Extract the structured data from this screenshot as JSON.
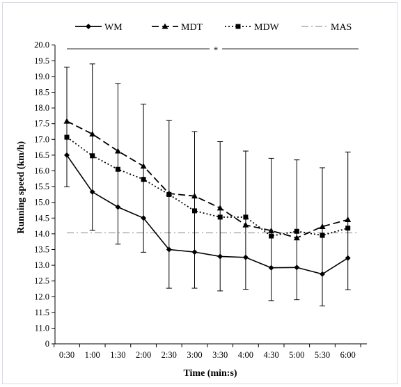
{
  "chart_data": {
    "type": "line",
    "xlabel": "Time (min:s)",
    "ylabel": "Running speed (km/h)",
    "ylim": [
      0,
      20
    ],
    "y_axis_break": [
      0,
      11
    ],
    "y_ticks": [
      "0",
      "11.0",
      "11.5",
      "12.0",
      "12.5",
      "13.0",
      "13.5",
      "14.0",
      "14.5",
      "15.0",
      "15.5",
      "16.0",
      "16.5",
      "17.0",
      "17.5",
      "18.0",
      "18.5",
      "19.0",
      "19.5",
      "20.0"
    ],
    "categories": [
      "0:30",
      "1:00",
      "1:30",
      "2:00",
      "2:30",
      "3:00",
      "3:30",
      "4:00",
      "4:30",
      "5:00",
      "5:30",
      "6:00"
    ],
    "legend_position": "top",
    "series": [
      {
        "name": "WM",
        "style": "solid",
        "marker": "diamond",
        "values": [
          16.5,
          15.33,
          14.85,
          14.5,
          13.5,
          13.42,
          13.28,
          13.25,
          12.92,
          12.93,
          12.72,
          13.23
        ],
        "error_upper": [
          2.8,
          4.07,
          3.93,
          3.62,
          4.1,
          3.83,
          3.65,
          3.38,
          3.48,
          3.42,
          3.38,
          3.37
        ]
      },
      {
        "name": "MDT",
        "style": "dashed",
        "marker": "triangle",
        "values": [
          17.58,
          17.17,
          16.63,
          16.15,
          15.28,
          15.2,
          14.82,
          14.28,
          14.1,
          13.87,
          14.23,
          14.45
        ]
      },
      {
        "name": "MDW",
        "style": "dotted",
        "marker": "square",
        "values": [
          17.07,
          16.48,
          16.05,
          15.73,
          15.25,
          14.73,
          14.53,
          14.53,
          13.93,
          14.08,
          13.95,
          14.18
        ]
      },
      {
        "name": "MAS",
        "style": "dash-dot",
        "marker": "none",
        "value": 14.03
      }
    ],
    "annotations": [
      {
        "text": "*",
        "y": 19.88,
        "type": "significance-bar"
      }
    ]
  }
}
